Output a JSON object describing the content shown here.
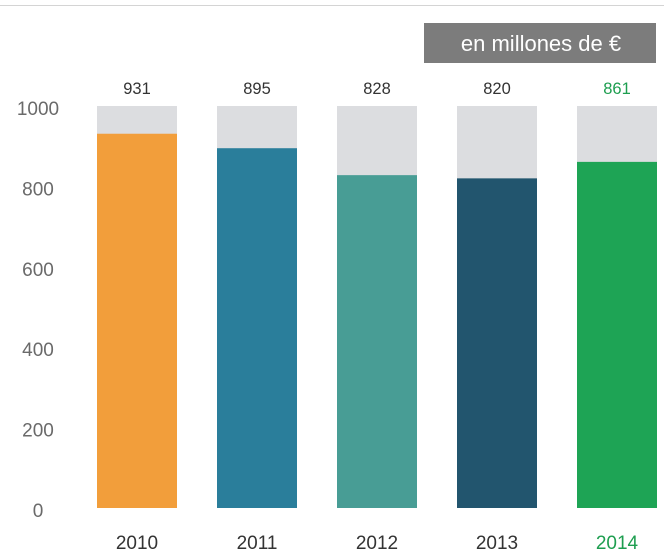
{
  "colors": {
    "background_bar": "#dcdde0",
    "unit_box": "#7c7c7c",
    "text": "#333333",
    "axis_text": "#6a6a6a",
    "rule": "#d4d4d4"
  },
  "chart_data": {
    "type": "bar",
    "title": "",
    "xlabel": "",
    "ylabel": "",
    "unit_label": "en millones de €",
    "categories": [
      "2010",
      "2011",
      "2012",
      "2013",
      "2014"
    ],
    "values": [
      931,
      895,
      828,
      820,
      861
    ],
    "ylim": [
      0,
      1000
    ],
    "yticks": [
      0,
      200,
      400,
      600,
      800,
      1000
    ],
    "bar_colors": [
      "#f29e3b",
      "#2a7e9b",
      "#489d95",
      "#22556e",
      "#1ea455"
    ],
    "label_colors": [
      "#333333",
      "#333333",
      "#333333",
      "#333333",
      "#1e9e50"
    ],
    "grid": false,
    "legend": "none"
  }
}
